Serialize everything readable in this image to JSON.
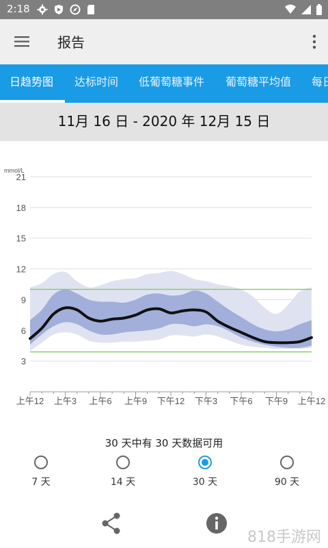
{
  "status_bar": {
    "time": "2:18",
    "left_icons": [
      "gear-icon",
      "shield-icon",
      "compass-icon",
      "sd-card-icon"
    ],
    "right_icons": [
      "wifi-icon",
      "signal-icon",
      "battery-icon"
    ]
  },
  "app_bar": {
    "title": "报告"
  },
  "tabs": [
    {
      "label": "日趋势图",
      "active": true
    },
    {
      "label": "达标时间",
      "active": false
    },
    {
      "label": "低葡萄糖事件",
      "active": false
    },
    {
      "label": "葡萄糖平均值",
      "active": false
    },
    {
      "label": "每日",
      "active": false
    }
  ],
  "date_range": "11月 16 日 - 2020 年 12月 15 日",
  "availability_text": "30 天中有 30 天数据可用",
  "period_options": [
    {
      "label": "7 天",
      "checked": false
    },
    {
      "label": "14 天",
      "checked": false
    },
    {
      "label": "30 天",
      "checked": true
    },
    {
      "label": "90 天",
      "checked": false
    }
  ],
  "watermark": "818手游网",
  "chart_data": {
    "type": "area",
    "ylabel": "mmol/L",
    "ylim": [
      0,
      21
    ],
    "yticks": [
      3,
      6,
      9,
      12,
      15,
      18,
      21
    ],
    "x_range_hours": [
      0,
      24
    ],
    "xtick_labels": [
      "上午12",
      "上午3",
      "上午6",
      "上午9",
      "下午12",
      "下午3",
      "下午6",
      "下午9",
      "上午12"
    ],
    "target_range": [
      3.9,
      10.0
    ],
    "colors": {
      "median": "#111111",
      "band_inner": "#96a6d6",
      "band_outer": "#dfe3f1",
      "target_line": "#86c95a",
      "grid": "#dddddd"
    },
    "x": [
      0,
      1,
      2,
      3,
      4,
      5,
      6,
      7,
      8,
      9,
      10,
      11,
      12,
      13,
      14,
      15,
      16,
      17,
      18,
      19,
      20,
      21,
      22,
      23,
      24
    ],
    "series": [
      {
        "role": "p5",
        "values": [
          4.0,
          4.8,
          5.6,
          5.8,
          5.6,
          5.0,
          4.8,
          4.8,
          4.9,
          4.9,
          5.0,
          5.1,
          5.5,
          5.5,
          5.4,
          5.6,
          5.4,
          5.0,
          4.6,
          4.4,
          4.3,
          4.2,
          4.2,
          4.2,
          4.3
        ]
      },
      {
        "role": "p25",
        "values": [
          4.6,
          5.6,
          6.4,
          6.8,
          6.6,
          6.0,
          5.6,
          5.6,
          5.8,
          5.9,
          6.0,
          6.2,
          6.6,
          6.6,
          6.4,
          6.6,
          6.4,
          5.9,
          5.3,
          4.9,
          4.6,
          4.4,
          4.3,
          4.3,
          4.5
        ]
      },
      {
        "role": "median",
        "values": [
          5.2,
          6.2,
          7.6,
          8.2,
          8.0,
          7.2,
          6.9,
          7.1,
          7.2,
          7.5,
          8.0,
          8.1,
          7.7,
          7.9,
          8.0,
          7.8,
          6.9,
          6.3,
          5.8,
          5.3,
          4.9,
          4.8,
          4.8,
          4.9,
          5.3
        ]
      },
      {
        "role": "p75",
        "values": [
          7.0,
          8.0,
          9.5,
          10.0,
          9.6,
          9.0,
          8.8,
          8.8,
          8.7,
          9.0,
          9.5,
          9.6,
          9.4,
          9.5,
          9.9,
          9.6,
          8.8,
          8.0,
          7.3,
          6.6,
          6.1,
          5.9,
          6.1,
          6.6,
          7.0
        ]
      },
      {
        "role": "p95",
        "values": [
          10.2,
          10.6,
          11.5,
          11.7,
          10.8,
          10.2,
          10.4,
          10.8,
          11.0,
          11.1,
          11.5,
          11.6,
          11.8,
          11.5,
          11.0,
          10.8,
          10.5,
          10.3,
          10.0,
          9.3,
          8.2,
          7.6,
          8.5,
          9.8,
          10.2
        ]
      }
    ]
  }
}
